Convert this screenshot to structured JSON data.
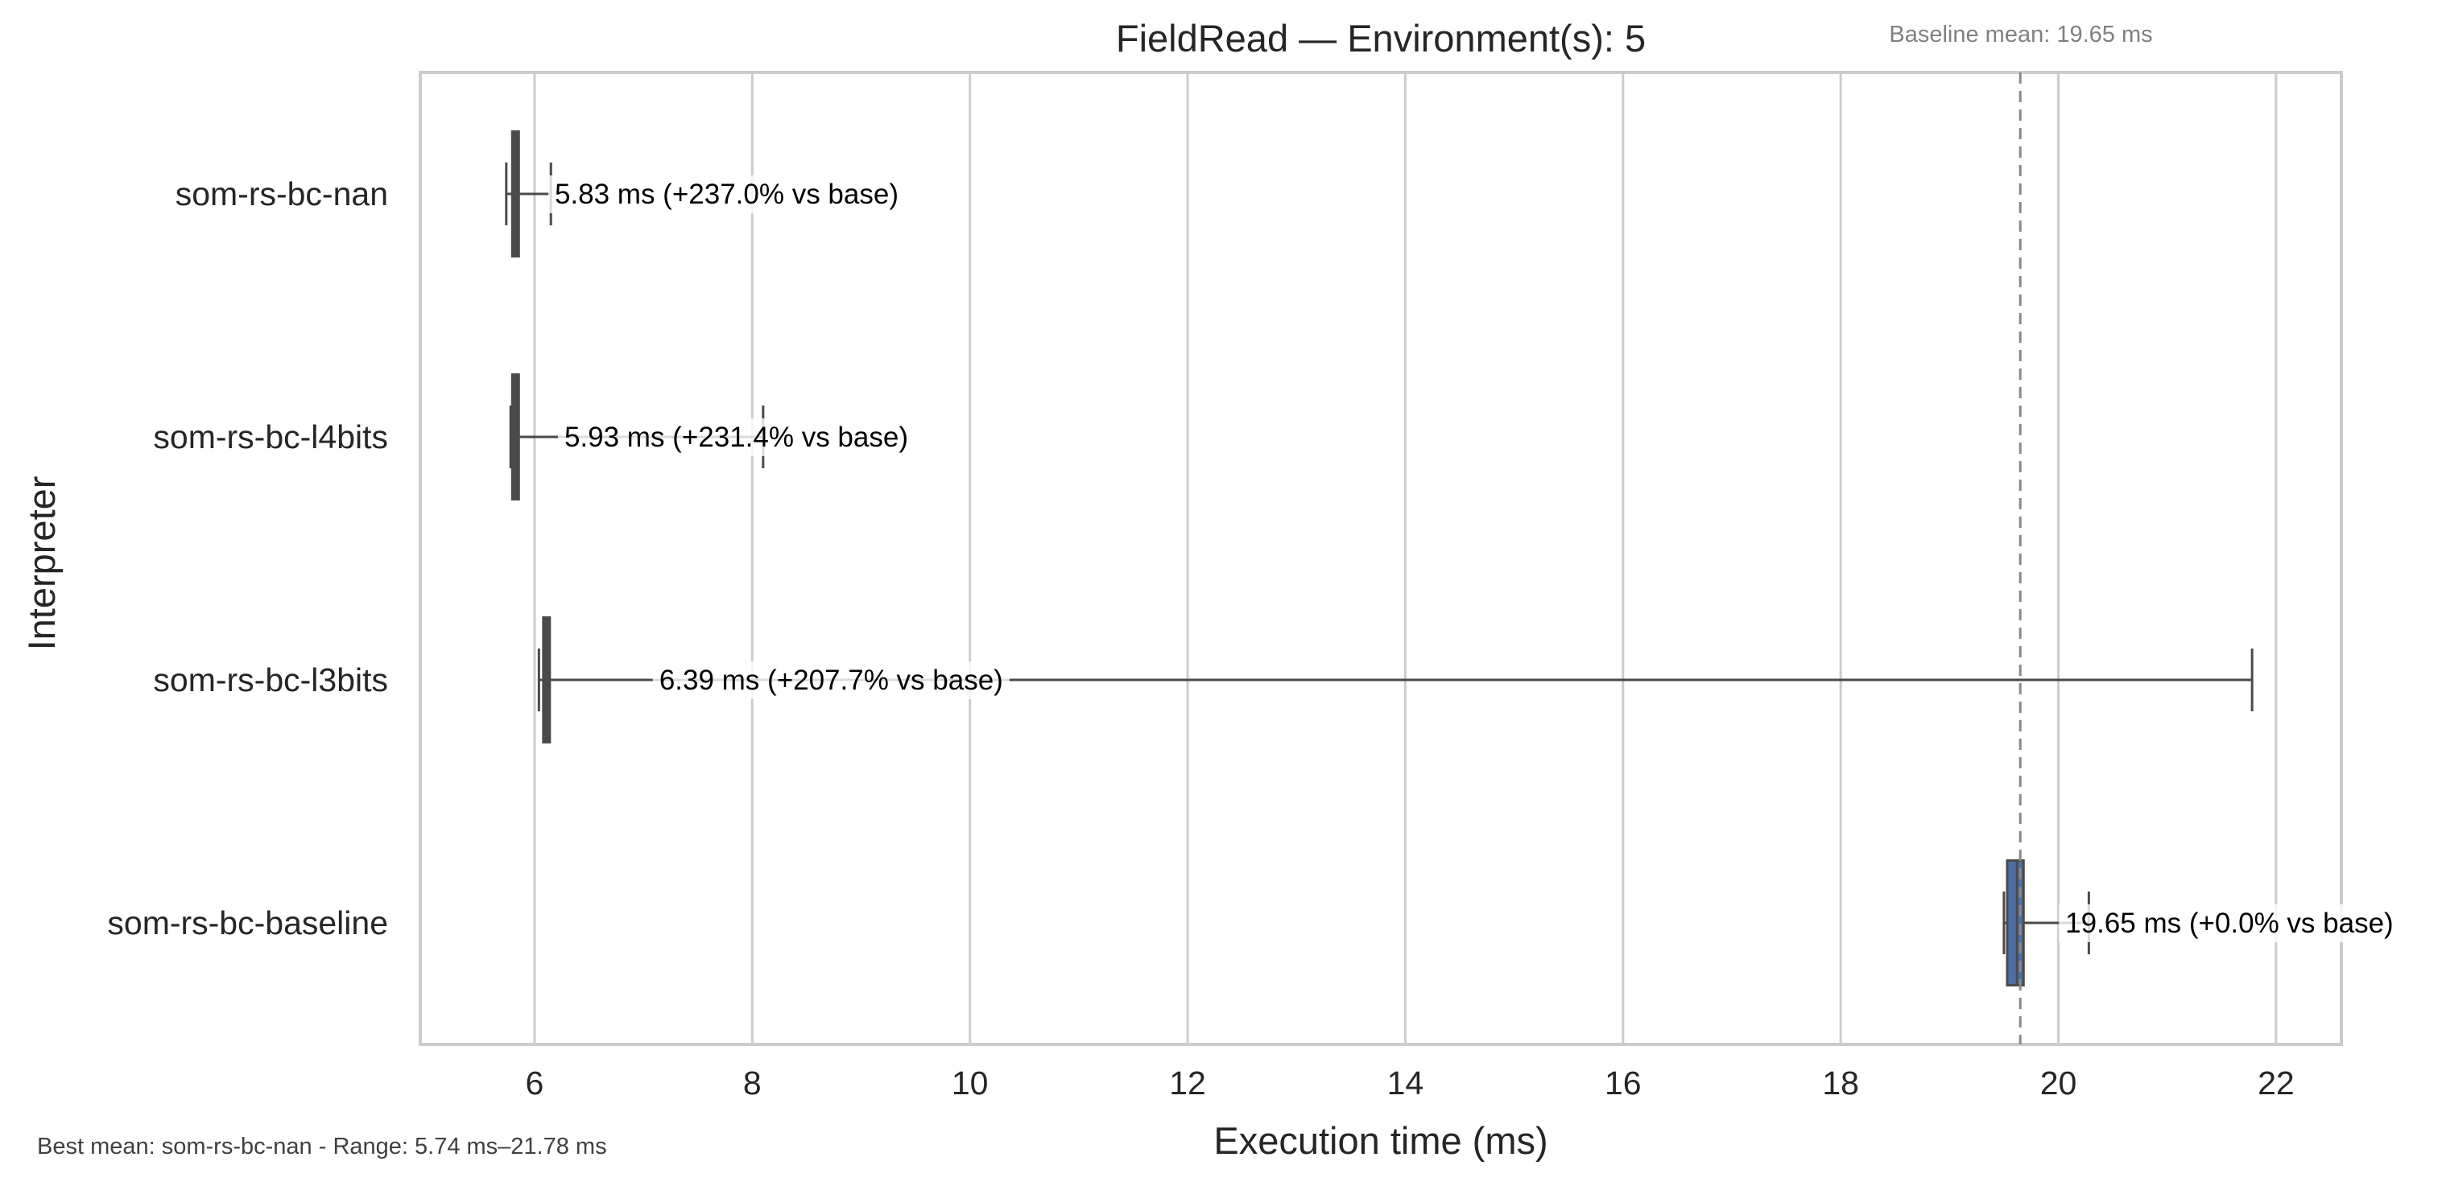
{
  "chart_data": {
    "type": "box",
    "orientation": "horizontal",
    "title": "FieldRead — Environment(s): 5",
    "xlabel": "Execution time (ms)",
    "ylabel": "Interpreter",
    "xlim": [
      4.95,
      22.6
    ],
    "xticks": [
      6,
      8,
      10,
      12,
      14,
      16,
      18,
      20,
      22
    ],
    "grid": "vertical",
    "baseline": {
      "value": 19.65,
      "label": "Baseline mean: 19.65 ms"
    },
    "series": [
      {
        "name": "som-rs-bc-nan",
        "min": 5.74,
        "q1": 5.81,
        "median": 5.83,
        "q3": 5.84,
        "max": 6.15,
        "annotation": "5.83 ms  (+237.0% vs base)",
        "color": "#4a4a4a"
      },
      {
        "name": "som-rs-bc-l4bits",
        "min": 5.78,
        "q1": 5.81,
        "median": 5.83,
        "q3": 5.84,
        "max": 8.1,
        "annotation": "5.93 ms  (+231.4% vs base)",
        "color": "#4a4a4a"
      },
      {
        "name": "som-rs-bc-l3bits",
        "min": 6.04,
        "q1": 6.09,
        "median": 6.11,
        "q3": 6.13,
        "max": 21.78,
        "annotation": "6.39 ms  (+207.7% vs base)",
        "color": "#4a4a4a"
      },
      {
        "name": "som-rs-bc-baseline",
        "min": 19.5,
        "q1": 19.53,
        "median": 19.62,
        "q3": 19.68,
        "max": 20.28,
        "annotation": "19.65 ms  (+0.0% vs base)",
        "color": "#4c6fa8"
      }
    ],
    "footer": "Best mean: som-rs-bc-nan - Range: 5.74 ms–21.78 ms"
  }
}
